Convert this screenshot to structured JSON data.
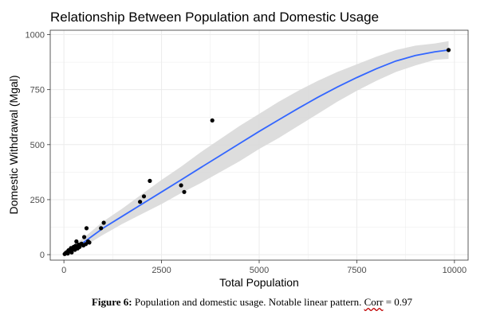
{
  "chart_data": {
    "type": "scatter",
    "title": "Relationship Between Population and Domestic Usage",
    "xlabel": "Total Population",
    "ylabel": "Domestic Withdrawal (Mgal)",
    "xlim": [
      -350,
      10350
    ],
    "ylim": [
      -25,
      1020
    ],
    "xticks": [
      0,
      2500,
      5000,
      7500,
      10000
    ],
    "xtick_labels": [
      "0",
      "2500",
      "5000",
      "7500",
      "10000"
    ],
    "yticks": [
      0,
      250,
      500,
      750,
      1000
    ],
    "ytick_labels": [
      "0",
      "250",
      "500",
      "750",
      "1000"
    ],
    "grid": true,
    "colors": {
      "points": "#000000",
      "smooth": "#3366ff",
      "band": "#d9d9d9",
      "grid": "#ebebeb"
    },
    "points": [
      {
        "x": 20,
        "y": 3
      },
      {
        "x": 50,
        "y": 8
      },
      {
        "x": 80,
        "y": 12
      },
      {
        "x": 100,
        "y": 5
      },
      {
        "x": 120,
        "y": 20
      },
      {
        "x": 150,
        "y": 15
      },
      {
        "x": 180,
        "y": 30
      },
      {
        "x": 200,
        "y": 10
      },
      {
        "x": 220,
        "y": 25
      },
      {
        "x": 250,
        "y": 35
      },
      {
        "x": 280,
        "y": 22
      },
      {
        "x": 300,
        "y": 40
      },
      {
        "x": 320,
        "y": 60
      },
      {
        "x": 350,
        "y": 28
      },
      {
        "x": 380,
        "y": 45
      },
      {
        "x": 400,
        "y": 35
      },
      {
        "x": 450,
        "y": 50
      },
      {
        "x": 500,
        "y": 42
      },
      {
        "x": 520,
        "y": 80
      },
      {
        "x": 560,
        "y": 48
      },
      {
        "x": 580,
        "y": 120
      },
      {
        "x": 620,
        "y": 60
      },
      {
        "x": 650,
        "y": 55
      },
      {
        "x": 950,
        "y": 120
      },
      {
        "x": 1020,
        "y": 145
      },
      {
        "x": 1950,
        "y": 240
      },
      {
        "x": 2050,
        "y": 265
      },
      {
        "x": 2200,
        "y": 335
      },
      {
        "x": 3000,
        "y": 315
      },
      {
        "x": 3080,
        "y": 285
      },
      {
        "x": 3800,
        "y": 610
      },
      {
        "x": 9850,
        "y": 930
      }
    ],
    "smooth": {
      "x": [
        0,
        500,
        1000,
        1500,
        2000,
        2500,
        3000,
        3500,
        4000,
        4500,
        5000,
        5500,
        6000,
        6500,
        7000,
        7500,
        8000,
        8500,
        9000,
        9500,
        9850
      ],
      "y": [
        5,
        55,
        120,
        175,
        230,
        285,
        340,
        395,
        450,
        505,
        560,
        613,
        665,
        715,
        762,
        805,
        845,
        880,
        905,
        922,
        930
      ],
      "lower": [
        -5,
        35,
        90,
        140,
        185,
        230,
        280,
        325,
        375,
        425,
        480,
        530,
        585,
        640,
        695,
        745,
        790,
        830,
        860,
        885,
        890
      ],
      "upper": [
        15,
        75,
        150,
        210,
        275,
        340,
        400,
        465,
        525,
        585,
        640,
        695,
        745,
        790,
        830,
        865,
        900,
        930,
        950,
        960,
        970
      ]
    }
  },
  "caption": {
    "label": "Figure 6:",
    "text": " Population and domestic usage. Notable linear pattern. ",
    "corr": "Corr",
    "tail": " = 0.97"
  }
}
